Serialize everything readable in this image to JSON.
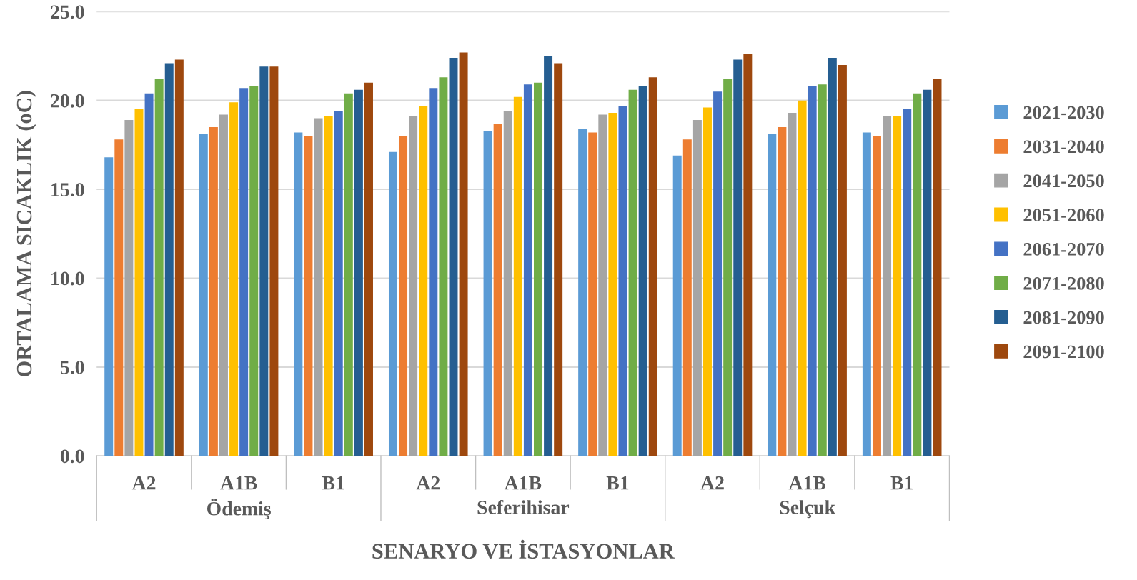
{
  "chart_data": {
    "type": "bar",
    "xlabel": "SENARYO VE İSTASYONLAR",
    "ylabel": "ORTALAMA SICAKLIK (oC)",
    "categories": [
      "A2",
      "A1B",
      "B1",
      "A2",
      "A1B",
      "B1",
      "A2",
      "A1B",
      "B1"
    ],
    "annotations": [
      "Ödemiş",
      "Seferihisar",
      "Selçuk"
    ],
    "series": [
      {
        "name": "2021-2030",
        "color": "#5b9bd5",
        "values": [
          16.8,
          18.1,
          18.2,
          17.1,
          18.3,
          18.4,
          16.9,
          18.1,
          18.2
        ]
      },
      {
        "name": "2031-2040",
        "color": "#ed7d31",
        "values": [
          17.8,
          18.5,
          18.0,
          18.0,
          18.7,
          18.2,
          17.8,
          18.5,
          18.0
        ]
      },
      {
        "name": "2041-2050",
        "color": "#a5a5a5",
        "values": [
          18.9,
          19.2,
          19.0,
          19.1,
          19.4,
          19.2,
          18.9,
          19.3,
          19.1
        ]
      },
      {
        "name": "2051-2060",
        "color": "#ffc000",
        "values": [
          19.5,
          19.9,
          19.1,
          19.7,
          20.2,
          19.3,
          19.6,
          20.0,
          19.1
        ]
      },
      {
        "name": "2061-2070",
        "color": "#4472c4",
        "values": [
          20.4,
          20.7,
          19.4,
          20.7,
          20.9,
          19.7,
          20.5,
          20.8,
          19.5
        ]
      },
      {
        "name": "2071-2080",
        "color": "#70ad47",
        "values": [
          21.2,
          20.8,
          20.4,
          21.3,
          21.0,
          20.6,
          21.2,
          20.9,
          20.4
        ]
      },
      {
        "name": "2081-2090",
        "color": "#255e91",
        "values": [
          22.1,
          21.9,
          20.6,
          22.4,
          22.5,
          20.8,
          22.3,
          22.4,
          20.6
        ]
      },
      {
        "name": "2091-2100",
        "color": "#9e480e",
        "values": [
          22.3,
          21.9,
          21.0,
          22.7,
          22.1,
          21.3,
          22.6,
          22.0,
          21.2
        ]
      }
    ],
    "ylim": [
      0,
      25
    ],
    "yticks": [
      {
        "value": 0,
        "label": "0.0"
      },
      {
        "value": 5,
        "label": "5.0"
      },
      {
        "value": 10,
        "label": "10.0"
      },
      {
        "value": 15,
        "label": "15.0"
      },
      {
        "value": 20,
        "label": "20.0"
      },
      {
        "value": 25,
        "label": "25.0"
      }
    ],
    "grid": "y",
    "legend": "right"
  }
}
